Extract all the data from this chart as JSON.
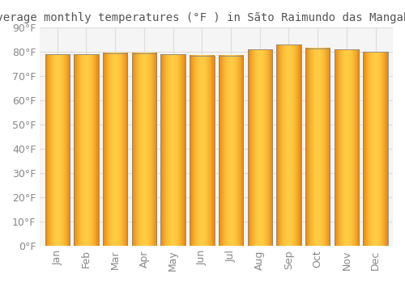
{
  "title": "Average monthly temperatures (°F ) in Sãto Raimundo das Mangabeiras",
  "months": [
    "Jan",
    "Feb",
    "Mar",
    "Apr",
    "May",
    "Jun",
    "Jul",
    "Aug",
    "Sep",
    "Oct",
    "Nov",
    "Dec"
  ],
  "values": [
    79,
    79,
    79.5,
    79.5,
    79,
    78.5,
    78.5,
    81,
    83,
    81.5,
    81,
    80
  ],
  "ylim": [
    0,
    90
  ],
  "yticks": [
    0,
    10,
    20,
    30,
    40,
    50,
    60,
    70,
    80,
    90
  ],
  "ytick_labels": [
    "0°F",
    "10°F",
    "20°F",
    "30°F",
    "40°F",
    "50°F",
    "60°F",
    "70°F",
    "80°F",
    "90°F"
  ],
  "bar_color_dark": "#E8820A",
  "bar_color_light": "#FFCC44",
  "bar_edge_color": "#888888",
  "background_color": "#FFFFFF",
  "plot_bg_color": "#F5F5F5",
  "grid_color": "#DDDDDD",
  "title_fontsize": 10,
  "tick_fontsize": 9,
  "bar_width": 0.85
}
